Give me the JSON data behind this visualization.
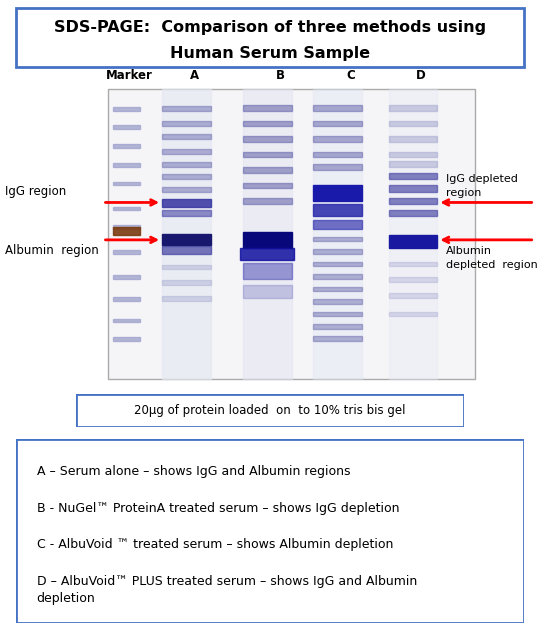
{
  "title_line1": "SDS-PAGE:  Comparison of three methods using",
  "title_line2": "Human Serum Sample",
  "title_fontsize": 11.5,
  "column_labels": [
    "Marker",
    "A",
    "B",
    "C",
    "D"
  ],
  "gel_caption": "20µg of protein loaded  on  to 10% tris bis gel",
  "legend_lines": [
    "A – Serum alone – shows IgG and Albumin regions",
    "B - NuGel™ ProteinA treated serum – shows IgG depletion",
    "C - AlbuVoid ™ treated serum – shows Albumin depletion",
    "D – AlbuVoid™ PLUS treated serum – shows IgG and Albumin\ndepletion"
  ],
  "left_label1": "IgG region",
  "left_label2": "Albumin  region",
  "right_label1": "IgG depleted\nregion",
  "right_label2": "Albumin\ndepleted  region",
  "arrow_color": "#FF0000",
  "background_color": "#FFFFFF",
  "border_color": "#4472C4",
  "text_color": "#000000",
  "gel_bg": "#dce0ec",
  "lane_bg": "#e8eaf4",
  "band_dark": "#18186e",
  "band_mid": "#6060a8",
  "band_light": "#a0a4cc",
  "marker_brown": "#7B3B10"
}
